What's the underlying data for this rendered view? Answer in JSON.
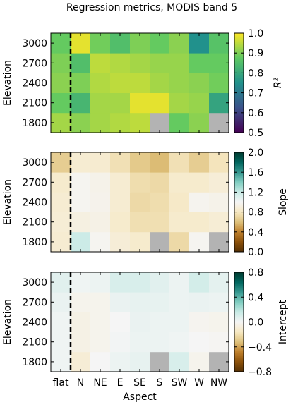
{
  "chart_data": [
    {
      "type": "heatmap",
      "title": "Regression metrics, MODIS band 5",
      "ylabel": "Elevation",
      "xlabel": "",
      "categories": [
        "flat",
        "N",
        "NE",
        "E",
        "SE",
        "S",
        "SW",
        "W",
        "NW"
      ],
      "y_categories": [
        "1800",
        "2100",
        "2400",
        "2700",
        "3000"
      ],
      "colorbar": {
        "label": "R²",
        "colormap": "viridis",
        "range": [
          0.5,
          1.0
        ],
        "ticks": [
          "0.5",
          "0.6",
          "0.7",
          "0.8",
          "0.9",
          "1.0"
        ]
      },
      "values": [
        [
          0.93,
          0.91,
          0.93,
          0.94,
          0.95,
          null,
          0.88,
          0.91,
          null
        ],
        [
          0.88,
          0.83,
          0.93,
          0.93,
          0.98,
          0.98,
          0.93,
          0.92,
          0.79
        ],
        [
          0.91,
          0.9,
          0.94,
          0.95,
          0.95,
          0.93,
          0.92,
          0.91,
          0.89
        ],
        [
          0.9,
          0.85,
          0.95,
          0.94,
          0.93,
          0.92,
          0.92,
          0.88,
          0.88
        ],
        [
          0.88,
          0.98,
          0.89,
          0.85,
          0.9,
          0.88,
          0.91,
          0.75,
          0.86
        ]
      ]
    },
    {
      "type": "heatmap",
      "ylabel": "Elevation",
      "xlabel": "",
      "categories": [
        "flat",
        "N",
        "NE",
        "E",
        "SE",
        "S",
        "SW",
        "W",
        "NW"
      ],
      "y_categories": [
        "1800",
        "2100",
        "2400",
        "2700",
        "3000"
      ],
      "colorbar": {
        "label": "Slope",
        "colormap": "BrBG",
        "range": [
          0.0,
          2.0
        ],
        "ticks": [
          "0.0",
          "0.4",
          "0.8",
          "1.2",
          "1.6",
          "2.0"
        ]
      },
      "values": [
        [
          0.86,
          1.18,
          0.98,
          0.88,
          0.84,
          null,
          0.72,
          0.98,
          null
        ],
        [
          0.87,
          0.92,
          0.94,
          0.84,
          0.75,
          0.75,
          0.84,
          0.84,
          0.87
        ],
        [
          0.86,
          0.98,
          0.96,
          0.86,
          0.72,
          0.74,
          0.82,
          0.97,
          0.95
        ],
        [
          0.84,
          0.98,
          0.95,
          0.86,
          0.74,
          0.72,
          0.84,
          0.84,
          0.88
        ],
        [
          0.66,
          0.86,
          0.85,
          0.76,
          0.64,
          0.58,
          0.76,
          0.66,
          0.78
        ]
      ]
    },
    {
      "type": "heatmap",
      "ylabel": "Elevation",
      "xlabel": "Aspect",
      "categories": [
        "flat",
        "N",
        "NE",
        "E",
        "SE",
        "S",
        "SW",
        "W",
        "NW"
      ],
      "y_categories": [
        "1800",
        "2100",
        "2400",
        "2700",
        "3000"
      ],
      "colorbar": {
        "label": "Intercept",
        "colormap": "BrBG",
        "range": [
          -0.8,
          0.8
        ],
        "ticks": [
          "−0.8",
          "−0.4",
          "0.0",
          "0.4",
          "0.8"
        ]
      },
      "values": [
        [
          0.02,
          -0.1,
          0.0,
          0.03,
          0.05,
          null,
          0.1,
          -0.03,
          null
        ],
        [
          0.02,
          -0.05,
          -0.03,
          0.01,
          0.03,
          0.03,
          0.02,
          0.0,
          -0.01
        ],
        [
          0.02,
          -0.05,
          -0.03,
          0.0,
          0.04,
          0.03,
          0.03,
          -0.02,
          -0.03
        ],
        [
          0.04,
          -0.03,
          -0.03,
          0.04,
          0.05,
          0.05,
          0.03,
          0.04,
          0.03
        ],
        [
          0.07,
          0.02,
          0.03,
          0.1,
          0.1,
          0.07,
          0.03,
          0.12,
          0.06
        ]
      ]
    }
  ],
  "nodata_color": "#b3b3b3",
  "divider_after_category": "flat"
}
